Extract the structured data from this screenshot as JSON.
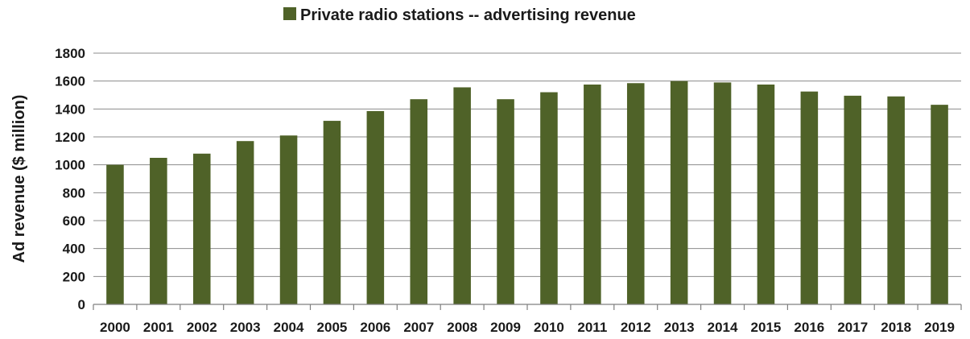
{
  "chart_data": {
    "type": "bar",
    "title": "",
    "xlabel": "",
    "ylabel": "Ad revenue ($ million)",
    "ylim": [
      0,
      1800
    ],
    "yticks": [
      "0",
      "200",
      "400",
      "600",
      "800",
      "1000",
      "1200",
      "1400",
      "1600",
      "1800"
    ],
    "grid": true,
    "legend_position": "top-center",
    "categories": [
      "2000",
      "2001",
      "2002",
      "2003",
      "2004",
      "2005",
      "2006",
      "2007",
      "2008",
      "2009",
      "2010",
      "2011",
      "2012",
      "2013",
      "2014",
      "2015",
      "2016",
      "2017",
      "2018",
      "2019"
    ],
    "series": [
      {
        "name": "Private radio stations -- advertising revenue",
        "color": "#4f6228",
        "values": [
          1000,
          1050,
          1080,
          1170,
          1210,
          1315,
          1385,
          1470,
          1555,
          1470,
          1520,
          1575,
          1585,
          1600,
          1590,
          1575,
          1525,
          1495,
          1490,
          1430
        ]
      }
    ]
  }
}
